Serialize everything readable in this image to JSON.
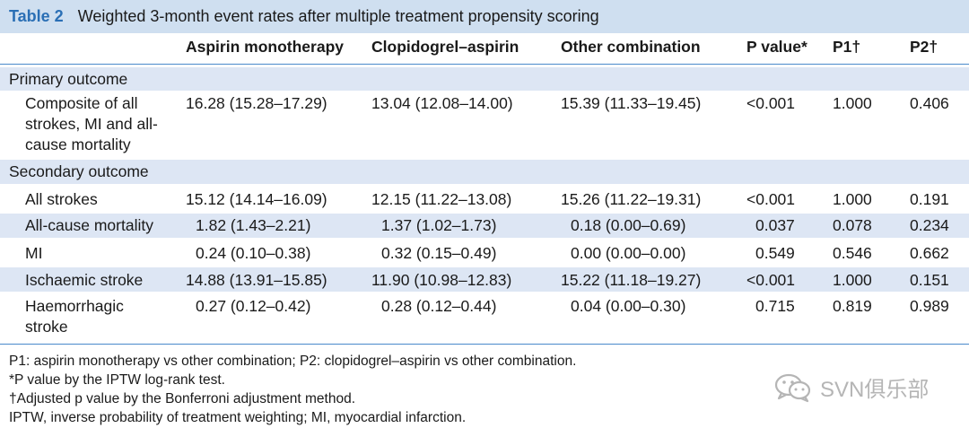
{
  "table": {
    "number": "Table 2",
    "title": "Weighted 3-month event rates after multiple treatment propensity scoring",
    "columns": [
      "Aspirin monotherapy",
      "Clopidogrel–aspirin",
      "Other combination",
      "P value*",
      "P1†",
      "P2†"
    ],
    "sections": [
      {
        "label": "Primary outcome",
        "rows": [
          {
            "name": [
              "Composite of all",
              "strokes, MI and all-",
              "cause mortality"
            ],
            "values": [
              "16.28 (15.28–17.29)",
              "13.04 (12.08–14.00)",
              "15.39 (11.33–19.45)",
              "<0.001",
              "1.000",
              "0.406"
            ]
          }
        ]
      },
      {
        "label": "Secondary outcome",
        "rows": [
          {
            "name": [
              "All strokes"
            ],
            "values": [
              "15.12 (14.14–16.09)",
              "12.15 (11.22–13.08)",
              "15.26 (11.22–19.31)",
              "<0.001",
              "1.000",
              "0.191"
            ]
          },
          {
            "name": [
              "All-cause mortality"
            ],
            "values": [
              "1.82 (1.43–2.21)",
              "1.37 (1.02–1.73)",
              "0.18 (0.00–0.69)",
              "0.037",
              "0.078",
              "0.234"
            ]
          },
          {
            "name": [
              "MI"
            ],
            "values": [
              "0.24 (0.10–0.38)",
              "0.32 (0.15–0.49)",
              "0.00 (0.00–0.00)",
              "0.549",
              "0.546",
              "0.662"
            ]
          },
          {
            "name": [
              "Ischaemic stroke"
            ],
            "values": [
              "14.88 (13.91–15.85)",
              "11.90 (10.98–12.83)",
              "15.22 (11.18–19.27)",
              "<0.001",
              "1.000",
              "0.151"
            ]
          },
          {
            "name": [
              "Haemorrhagic",
              "stroke"
            ],
            "values": [
              "0.27 (0.12–0.42)",
              "0.28 (0.12–0.44)",
              "0.04 (0.00–0.30)",
              "0.715",
              "0.819",
              "0.989"
            ]
          }
        ]
      }
    ],
    "footnotes": [
      "P1: aspirin monotherapy vs other combination; P2: clopidogrel–aspirin vs other combination.",
      "*P value by the IPTW log-rank test.",
      "†Adjusted p value by the Bonferroni adjustment method.",
      "IPTW, inverse probability of treatment weighting; MI, myocardial infarction."
    ]
  },
  "watermark": {
    "icon": "wechat-icon",
    "text": "SVN俱乐部"
  },
  "colors": {
    "title_bg": "#cfdff0",
    "row_shade": "#dde6f4",
    "accent": "#2a6fb5"
  }
}
